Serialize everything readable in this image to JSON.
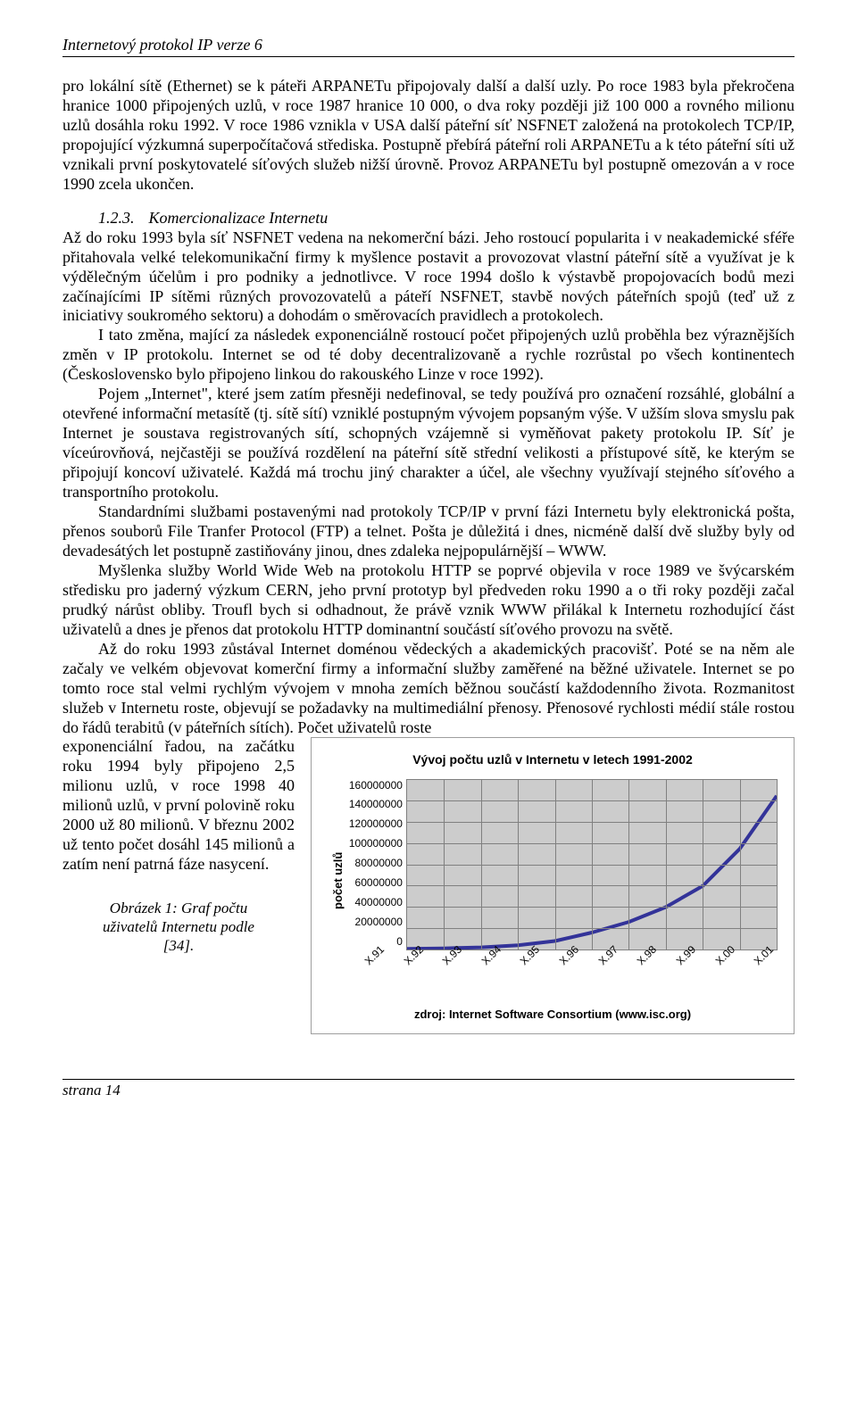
{
  "header": {
    "title": "Internetový protokol IP verze 6"
  },
  "body": {
    "p1": "pro lokální sítě (Ethernet) se k páteři ARPANETu připojovaly další a další uzly. Po roce 1983 byla překročena hranice 1000 připojených uzlů, v roce 1987 hranice 10 000, o dva roky později již 100 000 a rovného milionu uzlů dosáhla roku 1992. V roce 1986 vznikla v USA další páteřní síť NSFNET založená na protokolech TCP/IP, propojující výzkumná superpočítačová střediska. Postupně přebírá páteřní roli ARPANETu a k této páteřní síti už vznikali první poskytovatelé síťových služeb nižší úrovně. Provoz ARPANETu byl postupně omezován a v roce 1990 zcela ukončen.",
    "sec_num": "1.2.3.",
    "sec_title": "Komercionalizace Internetu",
    "p2": "Až do roku 1993 byla síť NSFNET vedena na nekomerční bázi. Jeho rostoucí popularita i v neakademické sféře přitahovala velké telekomunikační firmy k myšlence postavit a provozovat vlastní páteřní sítě a využívat je k výdělečným účelům i pro podniky a jednotlivce. V roce 1994 došlo k výstavbě propojovacích bodů mezi začínajícími IP sítěmi různých provozovatelů a páteří NSFNET, stavbě nových páteřních spojů (teď už z iniciativy soukromého sektoru) a dohodám o směrovacích pravidlech a protokolech.",
    "p3": "I tato změna, mající za následek exponenciálně rostoucí počet připojených uzlů proběhla bez výraznějších změn v IP protokolu. Internet se od té doby decentralizovaně a rychle rozrůstal po všech kontinentech (Československo bylo připojeno linkou do rakouského Linze v roce 1992).",
    "p4": "Pojem „Internet\", které jsem zatím přesněji nedefinoval, se tedy používá pro označení rozsáhlé, globální a otevřené informační metasítě (tj. sítě sítí) vzniklé postupným vývojem popsaným výše. V užším slova smyslu pak Internet je soustava registrovaných sítí, schopných vzájemně si vyměňovat pakety protokolu IP. Síť je víceúrovňová, nejčastěji se používá rozdělení na páteřní sítě střední velikosti a přístupové sítě, ke kterým se připojují koncoví uživatelé. Každá má trochu jiný charakter a účel, ale všechny využívají stejného síťového a transportního protokolu.",
    "p5": "Standardními službami postavenými nad protokoly TCP/IP v první fázi Internetu byly elektronická pošta, přenos souborů File Tranfer Protocol (FTP) a telnet. Pošta je důležitá i dnes, nicméně další dvě služby byly od devadesátých let postupně zastiňovány jinou, dnes zdaleka nejpopulárnější – WWW.",
    "p6": "Myšlenka služby World Wide Web na protokolu HTTP se poprvé objevila v roce 1989 ve švýcarském středisku pro jaderný výzkum CERN, jeho první prototyp byl předveden roku 1990 a o tři roky později začal prudký nárůst obliby. Troufl bych si odhadnout, že právě vznik WWW přilákal k Internetu rozhodující část uživatelů a dnes je přenos dat protokolu HTTP dominantní součástí síťového provozu na světě.",
    "p7": "Až do roku 1993 zůstával Internet doménou vědeckých a akademických pracovišť. Poté se na něm ale začaly ve velkém objevovat komerční firmy a informační služby zaměřené na běžné uživatele. Internet se po tomto roce stal velmi rychlým vývojem v mnoha zemích běžnou součástí každodenního života. Rozmanitost služeb v Internetu roste, objevují se požadavky na multimediální přenosy. Přenosové rychlosti médií stále rostou do řádů terabitů (v páteřních sítích). Počet uživatelů roste",
    "left_tail": "exponenciální řadou, na začátku roku 1994 byly připojeno 2,5 milionu uzlů, v roce 1998 40 milionů uzlů, v první polovině roku 2000 už 80 milionů. V březnu 2002 už tento počet dosáhl 145 milionů a zatím není patrná fáze nasycení."
  },
  "figure": {
    "caption_line1": "Obrázek 1: Graf počtu",
    "caption_line2": "uživatelů Internetu podle",
    "caption_line3": "[34]."
  },
  "chart": {
    "title": "Vývoj počtu uzlů v Internetu v letech 1991-2002",
    "y_label": "počet uzlů",
    "source": "zdroj: Internet Software Consortium (www.isc.org)",
    "plot_bg": "#cccccc",
    "grid_color": "#808080",
    "line_color": "#333399",
    "line_width": 4,
    "ylim": [
      0,
      160000000
    ],
    "ytick_step": 20000000,
    "y_ticks": [
      "160000000",
      "140000000",
      "120000000",
      "100000000",
      "80000000",
      "60000000",
      "40000000",
      "20000000",
      "0"
    ],
    "x_labels": [
      "X.91",
      "X.92",
      "X.93",
      "X.94",
      "X.95",
      "X.96",
      "X.97",
      "X.98",
      "X.99",
      "X.00",
      "X.01"
    ],
    "values": [
      600000,
      1100000,
      2000000,
      4000000,
      8000000,
      16000000,
      26000000,
      40000000,
      60000000,
      95000000,
      145000000
    ]
  },
  "footer": {
    "page": "strana 14"
  }
}
